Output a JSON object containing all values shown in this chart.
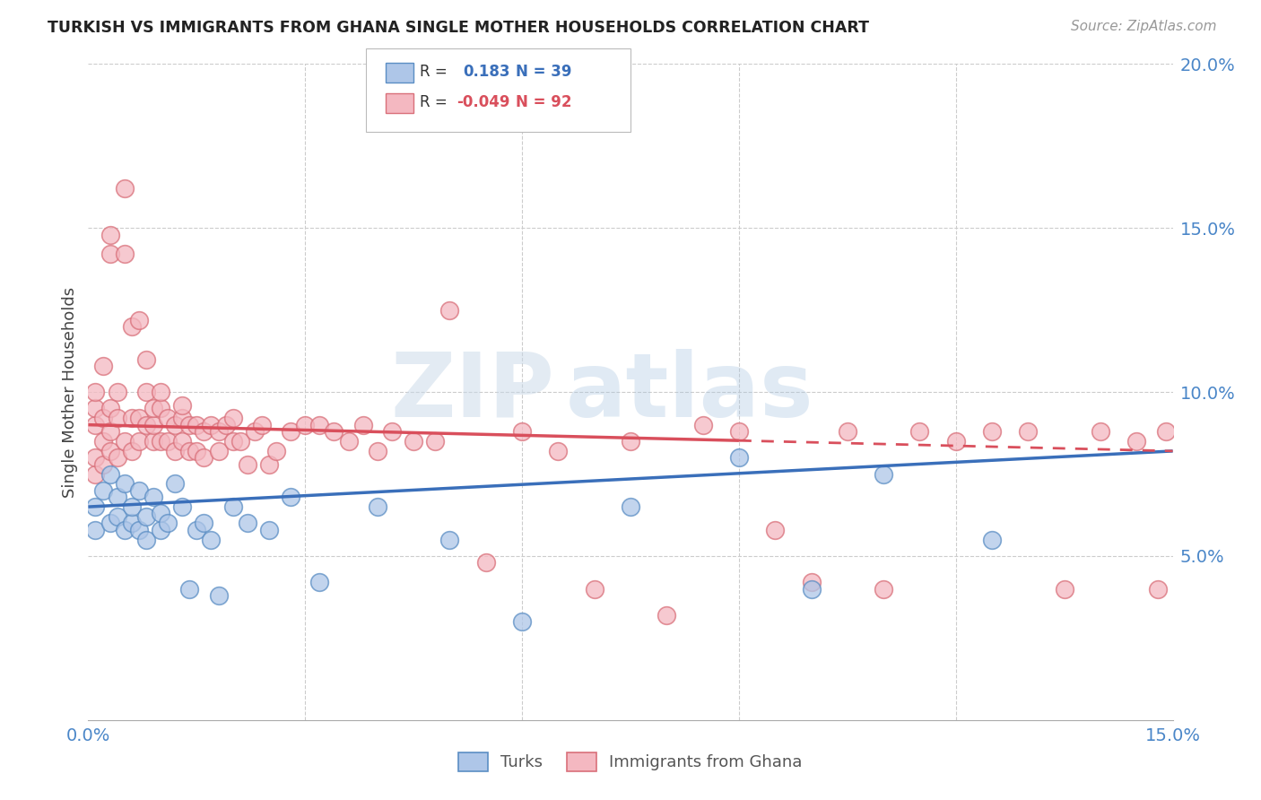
{
  "title": "TURKISH VS IMMIGRANTS FROM GHANA SINGLE MOTHER HOUSEHOLDS CORRELATION CHART",
  "source": "Source: ZipAtlas.com",
  "ylabel_label": "Single Mother Households",
  "x_min": 0.0,
  "x_max": 0.15,
  "y_min": 0.0,
  "y_max": 0.2,
  "blue_R": 0.183,
  "blue_N": 39,
  "pink_R": -0.049,
  "pink_N": 92,
  "blue_fill": "#aec6e8",
  "pink_fill": "#f4b8c1",
  "blue_edge": "#5b8ec4",
  "pink_edge": "#d9707a",
  "blue_line": "#3a6fba",
  "pink_line": "#d94f5c",
  "watermark_zip": "ZIP",
  "watermark_atlas": "atlas",
  "legend_label_blue": "Turks",
  "legend_label_pink": "Immigrants from Ghana",
  "blue_line_start_y": 0.065,
  "blue_line_end_y": 0.082,
  "pink_line_start_y": 0.09,
  "pink_line_end_y": 0.082,
  "blue_x": [
    0.001,
    0.001,
    0.002,
    0.003,
    0.003,
    0.004,
    0.004,
    0.005,
    0.005,
    0.006,
    0.006,
    0.007,
    0.007,
    0.008,
    0.008,
    0.009,
    0.01,
    0.01,
    0.011,
    0.012,
    0.013,
    0.014,
    0.015,
    0.016,
    0.017,
    0.018,
    0.02,
    0.022,
    0.025,
    0.028,
    0.032,
    0.04,
    0.05,
    0.06,
    0.075,
    0.09,
    0.1,
    0.11,
    0.125
  ],
  "blue_y": [
    0.065,
    0.058,
    0.07,
    0.06,
    0.075,
    0.062,
    0.068,
    0.058,
    0.072,
    0.06,
    0.065,
    0.058,
    0.07,
    0.062,
    0.055,
    0.068,
    0.058,
    0.063,
    0.06,
    0.072,
    0.065,
    0.04,
    0.058,
    0.06,
    0.055,
    0.038,
    0.065,
    0.06,
    0.058,
    0.068,
    0.042,
    0.065,
    0.055,
    0.03,
    0.065,
    0.08,
    0.04,
    0.075,
    0.055
  ],
  "pink_x": [
    0.001,
    0.001,
    0.001,
    0.001,
    0.001,
    0.002,
    0.002,
    0.002,
    0.002,
    0.003,
    0.003,
    0.003,
    0.003,
    0.003,
    0.004,
    0.004,
    0.004,
    0.005,
    0.005,
    0.005,
    0.006,
    0.006,
    0.006,
    0.007,
    0.007,
    0.007,
    0.008,
    0.008,
    0.008,
    0.009,
    0.009,
    0.009,
    0.01,
    0.01,
    0.01,
    0.011,
    0.011,
    0.012,
    0.012,
    0.013,
    0.013,
    0.013,
    0.014,
    0.014,
    0.015,
    0.015,
    0.016,
    0.016,
    0.017,
    0.018,
    0.018,
    0.019,
    0.02,
    0.02,
    0.021,
    0.022,
    0.023,
    0.024,
    0.025,
    0.026,
    0.028,
    0.03,
    0.032,
    0.034,
    0.036,
    0.038,
    0.04,
    0.042,
    0.045,
    0.048,
    0.05,
    0.055,
    0.06,
    0.065,
    0.07,
    0.075,
    0.08,
    0.085,
    0.09,
    0.095,
    0.1,
    0.105,
    0.11,
    0.115,
    0.12,
    0.125,
    0.13,
    0.135,
    0.14,
    0.145,
    0.148,
    0.149
  ],
  "pink_y": [
    0.075,
    0.08,
    0.09,
    0.095,
    0.1,
    0.078,
    0.085,
    0.092,
    0.108,
    0.082,
    0.088,
    0.095,
    0.142,
    0.148,
    0.08,
    0.092,
    0.1,
    0.085,
    0.142,
    0.162,
    0.082,
    0.092,
    0.12,
    0.085,
    0.092,
    0.122,
    0.09,
    0.1,
    0.11,
    0.085,
    0.09,
    0.095,
    0.085,
    0.095,
    0.1,
    0.085,
    0.092,
    0.082,
    0.09,
    0.085,
    0.092,
    0.096,
    0.082,
    0.09,
    0.082,
    0.09,
    0.08,
    0.088,
    0.09,
    0.082,
    0.088,
    0.09,
    0.085,
    0.092,
    0.085,
    0.078,
    0.088,
    0.09,
    0.078,
    0.082,
    0.088,
    0.09,
    0.09,
    0.088,
    0.085,
    0.09,
    0.082,
    0.088,
    0.085,
    0.085,
    0.125,
    0.048,
    0.088,
    0.082,
    0.04,
    0.085,
    0.032,
    0.09,
    0.088,
    0.058,
    0.042,
    0.088,
    0.04,
    0.088,
    0.085,
    0.088,
    0.088,
    0.04,
    0.088,
    0.085,
    0.04,
    0.088
  ]
}
